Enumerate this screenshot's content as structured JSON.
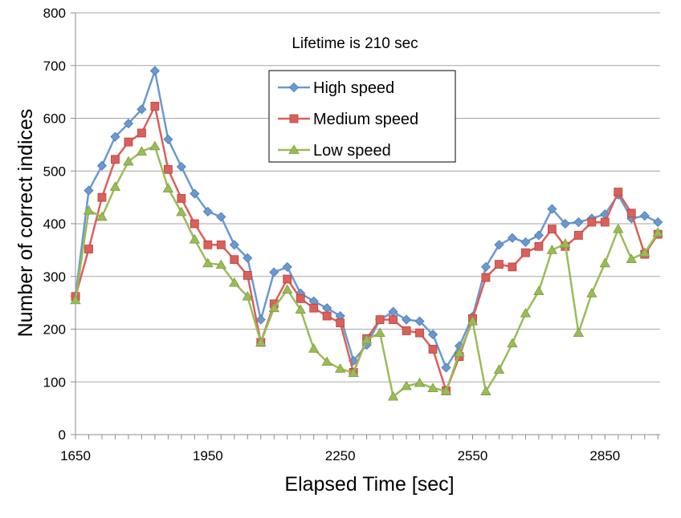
{
  "chart_data": {
    "type": "line",
    "title": "",
    "annotation": "Lifetime is 210 sec",
    "xlabel": "Elapsed Time [sec]",
    "ylabel": "Number of correct indices",
    "xlim": [
      1650,
      2975
    ],
    "ylim": [
      0,
      800
    ],
    "xticks": [
      1650,
      1950,
      2250,
      2550,
      2850
    ],
    "yticks": [
      0,
      100,
      200,
      300,
      400,
      500,
      600,
      700,
      800
    ],
    "x": [
      1650,
      1680,
      1710,
      1740,
      1770,
      1800,
      1830,
      1860,
      1890,
      1920,
      1950,
      1980,
      2010,
      2040,
      2070,
      2100,
      2130,
      2160,
      2190,
      2220,
      2250,
      2280,
      2310,
      2340,
      2370,
      2400,
      2430,
      2460,
      2490,
      2520,
      2550,
      2580,
      2610,
      2640,
      2670,
      2700,
      2730,
      2760,
      2790,
      2820,
      2850,
      2880,
      2910,
      2940,
      2970
    ],
    "series": [
      {
        "name": "High speed",
        "color": "#6a99d0",
        "marker": "diamond",
        "values": [
          263,
          463,
          510,
          565,
          590,
          617,
          690,
          560,
          508,
          457,
          423,
          413,
          360,
          335,
          218,
          308,
          318,
          268,
          253,
          240,
          225,
          140,
          170,
          218,
          233,
          218,
          215,
          190,
          127,
          168,
          224,
          318,
          360,
          373,
          365,
          378,
          428,
          400,
          403,
          410,
          418,
          455,
          410,
          415,
          403
        ]
      },
      {
        "name": "Medium speed",
        "color": "#d9605b",
        "marker": "square",
        "values": [
          262,
          352,
          450,
          522,
          555,
          572,
          623,
          503,
          448,
          400,
          360,
          360,
          332,
          302,
          175,
          248,
          295,
          258,
          240,
          225,
          212,
          118,
          182,
          218,
          218,
          197,
          193,
          162,
          83,
          148,
          220,
          298,
          323,
          318,
          345,
          357,
          390,
          357,
          378,
          403,
          403,
          460,
          420,
          342,
          380
        ]
      },
      {
        "name": "Low speed",
        "color": "#9bbb59",
        "marker": "triangle",
        "values": [
          255,
          425,
          413,
          470,
          518,
          537,
          547,
          467,
          422,
          370,
          325,
          322,
          288,
          262,
          175,
          240,
          275,
          237,
          163,
          138,
          125,
          117,
          180,
          193,
          72,
          92,
          98,
          88,
          83,
          155,
          215,
          82,
          123,
          173,
          230,
          272,
          350,
          362,
          193,
          268,
          325,
          390,
          333,
          345,
          383
        ]
      }
    ]
  },
  "legend": {
    "position": "top-center"
  }
}
